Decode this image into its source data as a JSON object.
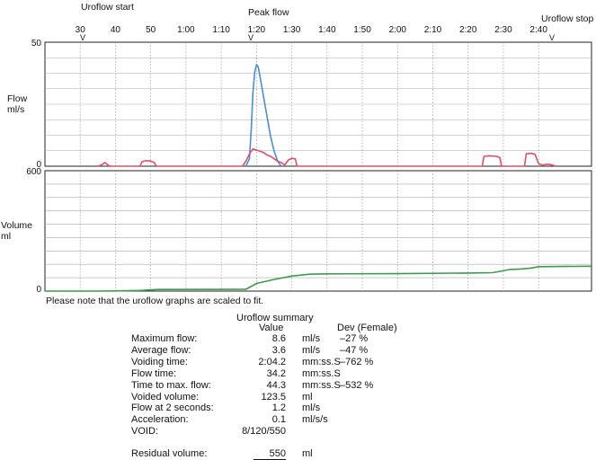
{
  "markers": {
    "start": "Uroflow start",
    "peak": "Peak flow",
    "stop": "Uroflow stop",
    "symbol": "V"
  },
  "chart_data": [
    {
      "type": "line",
      "title": "",
      "ylabel": "Flow\nml/s",
      "ylim": [
        0,
        50
      ],
      "yticks": [
        "0",
        "50"
      ],
      "x_ticks": [
        "30",
        "40",
        "50",
        "1:00",
        "1:10",
        "1:20",
        "1:30",
        "1:40",
        "1:50",
        "2:00",
        "2:10",
        "2:20",
        "2:30",
        "2:40"
      ],
      "grid": true,
      "series": [
        {
          "color": "#4a8fd0",
          "points": [
            [
              77,
              0
            ],
            [
              78,
              3
            ],
            [
              78.5,
              15
            ],
            [
              79,
              30
            ],
            [
              79.5,
              38
            ],
            [
              80,
              41
            ],
            [
              80.5,
              40
            ],
            [
              81,
              36
            ],
            [
              82,
              28
            ],
            [
              83,
              20
            ],
            [
              84,
              12
            ],
            [
              85,
              6
            ],
            [
              86,
              2
            ],
            [
              87,
              0
            ]
          ]
        },
        {
          "color": "#d9506a",
          "points": [
            [
              35,
              0
            ],
            [
              36,
              0.5
            ],
            [
              37,
              1.5
            ],
            [
              38,
              0.3
            ],
            [
              39,
              0
            ],
            [
              47,
              0
            ],
            [
              47.5,
              1.8
            ],
            [
              48.5,
              2.2
            ],
            [
              50,
              2.1
            ],
            [
              51,
              1.5
            ],
            [
              51.5,
              0
            ],
            [
              76,
              0
            ],
            [
              77,
              2
            ],
            [
              78,
              5
            ],
            [
              79,
              7
            ],
            [
              80,
              6.5
            ],
            [
              81,
              6
            ],
            [
              82,
              5.5
            ],
            [
              83,
              4.5
            ],
            [
              84,
              4
            ],
            [
              85,
              3
            ],
            [
              86,
              2
            ],
            [
              87,
              1.5
            ],
            [
              88,
              0.5
            ],
            [
              89,
              2.5
            ],
            [
              90,
              3.2
            ],
            [
              91,
              3
            ],
            [
              91.5,
              0
            ],
            [
              144,
              0
            ],
            [
              144.5,
              4
            ],
            [
              146,
              4.2
            ],
            [
              148,
              4
            ],
            [
              149,
              3.5
            ],
            [
              149.5,
              0
            ],
            [
              156,
              0
            ],
            [
              156.5,
              5
            ],
            [
              158,
              5.2
            ],
            [
              159,
              4.8
            ],
            [
              160,
              1
            ],
            [
              161,
              0.5
            ],
            [
              163,
              0.8
            ],
            [
              165,
              0
            ]
          ]
        }
      ]
    },
    {
      "type": "line",
      "title": "",
      "ylabel": "Volume\nml",
      "ylim": [
        0,
        600
      ],
      "yticks": [
        "0",
        "600"
      ],
      "grid": true,
      "series": [
        {
          "color": "#3e9a4e",
          "points": [
            [
              20,
              0
            ],
            [
              35,
              0
            ],
            [
              40,
              1
            ],
            [
              47,
              3
            ],
            [
              52,
              8
            ],
            [
              77,
              9
            ],
            [
              80,
              38
            ],
            [
              85,
              58
            ],
            [
              90,
              75
            ],
            [
              95,
              84
            ],
            [
              100,
              86
            ],
            [
              120,
              87
            ],
            [
              140,
              90
            ],
            [
              147,
              92
            ],
            [
              152,
              108
            ],
            [
              155,
              110
            ],
            [
              158,
              115
            ],
            [
              160,
              122
            ],
            [
              175,
              124
            ]
          ]
        }
      ]
    }
  ],
  "note": "Please note that the uroflow graphs are scaled to fit.",
  "summary": {
    "title": "Uroflow summary",
    "value_header": "Value",
    "dev_header": "Dev (Female)",
    "rows": [
      {
        "label": "Maximum flow:",
        "value": "8.6",
        "unit": "ml/s",
        "dev": "–27 %"
      },
      {
        "label": "Average flow:",
        "value": "3.6",
        "unit": "ml/s",
        "dev": "–47 %"
      },
      {
        "label": "Voiding time:",
        "value": "2:04.2",
        "unit": "mm:ss.S",
        "dev": "–762 %"
      },
      {
        "label": "Flow time:",
        "value": "34.2",
        "unit": "mm:ss.S",
        "dev": ""
      },
      {
        "label": "Time to max. flow:",
        "value": "44.3",
        "unit": "mm:ss.S",
        "dev": "–532 %"
      },
      {
        "label": "Voided volume:",
        "value": "123.5",
        "unit": "ml",
        "dev": ""
      },
      {
        "label": "Flow at 2 seconds:",
        "value": "1.2",
        "unit": "ml/s",
        "dev": ""
      },
      {
        "label": "Acceleration:",
        "value": "0.1",
        "unit": "ml/s/s",
        "dev": ""
      },
      {
        "label": "VOID:",
        "value": "8/120/550",
        "unit": "",
        "dev": ""
      }
    ],
    "residual": {
      "label": "Residual volume:",
      "value": "550",
      "unit": "ml"
    }
  }
}
